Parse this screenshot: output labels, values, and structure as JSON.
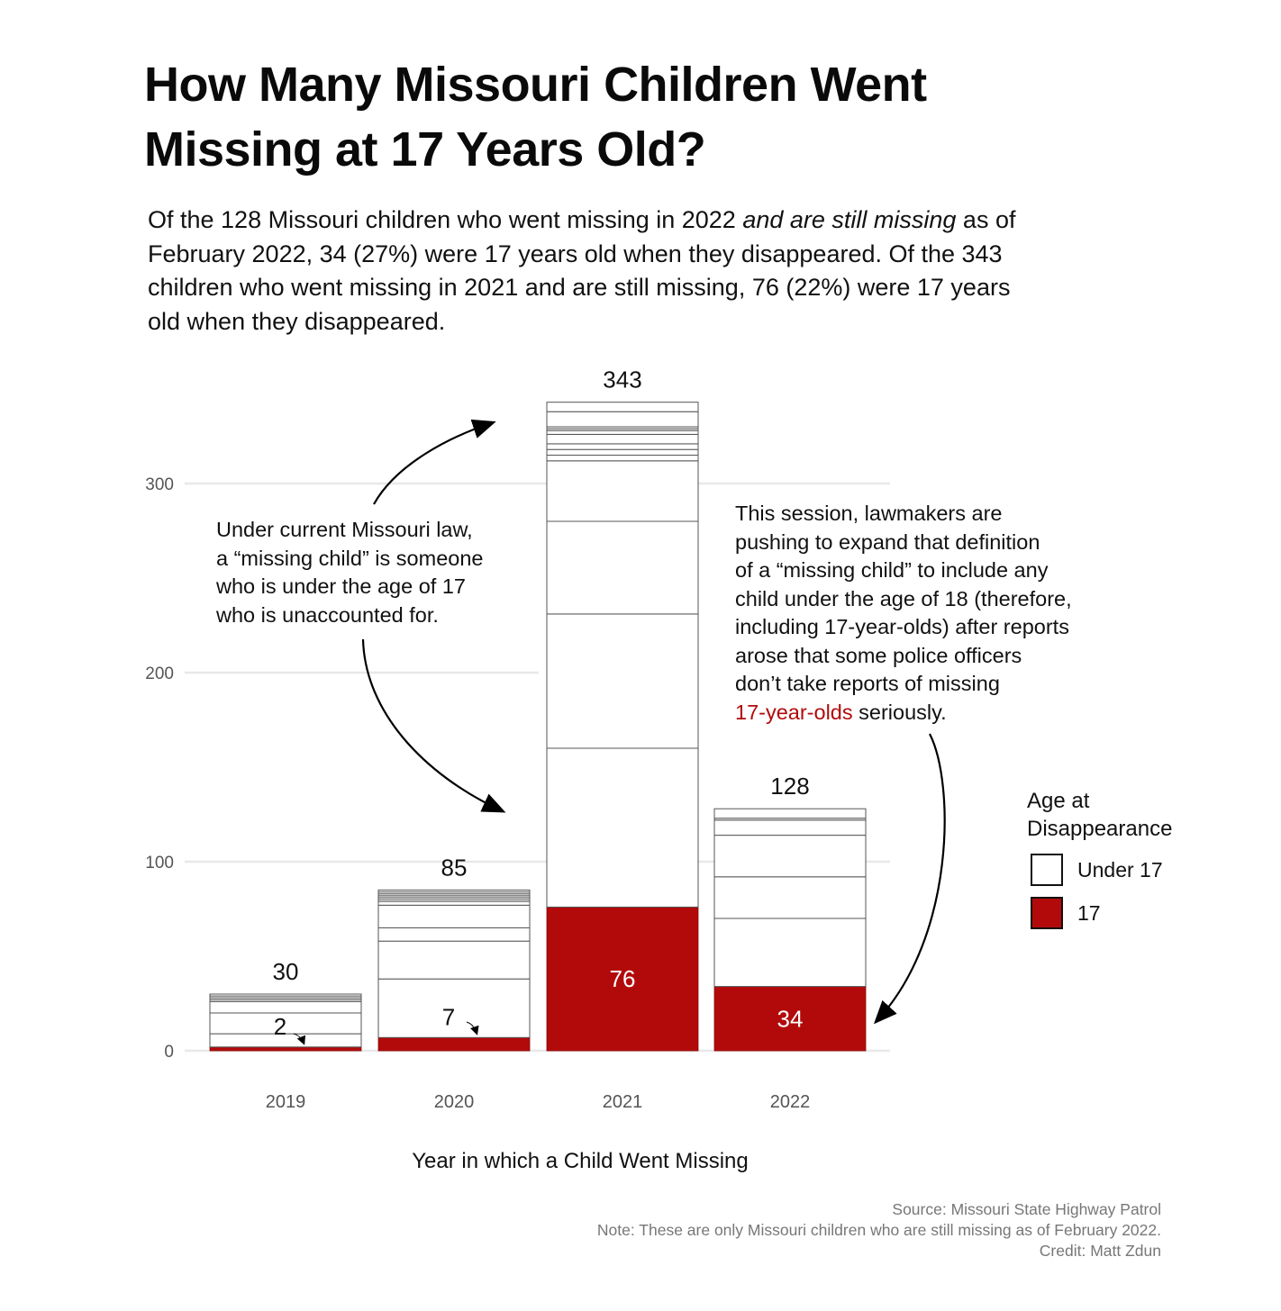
{
  "title": "How Many Missouri Children Went Missing at 17 Years Old?",
  "subtitle": {
    "parts": [
      {
        "text": "Of the 128 Missouri children who went missing in 2022 ",
        "italic": false
      },
      {
        "text": "and are still missing",
        "italic": true
      },
      {
        "text": " as of February 2022, 34 (27%) were 17 years old when they disappeared. Of the 343 children who went missing in 2021 and are still missing, 76 (22%) were 17 years old when they disappeared.",
        "italic": false
      }
    ]
  },
  "annotations": {
    "left": "Under current Missouri law,\na “missing child” is someone\nwho is under the age of 17\nwho is unaccounted for.",
    "right_main": "This session, lawmakers are\npushing to expand that definition\nof a “missing child” to include any\nchild under the age of 18 (therefore,\nincluding 17-year-olds) after reports\narose that some police officers\ndon’t take reports of missing\n",
    "right_highlight": "17-year-olds",
    "right_tail": " seriously."
  },
  "legend": {
    "title": "Age at\nDisappearance",
    "items": [
      {
        "label": "Under 17",
        "color": "#ffffff"
      },
      {
        "label": "17",
        "color": "#b20a0a"
      }
    ]
  },
  "footer": {
    "source": "Source: Missouri State Highway Patrol",
    "note": "Note: These are only Missouri children who are still missing as of February 2022.",
    "credit": "Credit: Matt Zdun"
  },
  "colors": {
    "seventeen": "#b20a0a",
    "under17": "#ffffff",
    "segment_line": "#555555",
    "grid": "#e8e8e8",
    "axis_text": "#555555"
  },
  "chart_data": {
    "type": "bar",
    "stacked": true,
    "title": "How Many Missouri Children Went Missing at 17 Years Old?",
    "xlabel": "Year in which a Child Went Missing",
    "ylabel": "",
    "categories": [
      "2019",
      "2020",
      "2021",
      "2022"
    ],
    "ylim": [
      0,
      343
    ],
    "yticks": [
      0,
      100,
      200,
      300
    ],
    "grid": true,
    "legend_position": "right",
    "totals": [
      30,
      85,
      343,
      128
    ],
    "seventeen": [
      2,
      7,
      76,
      34
    ],
    "under17": [
      28,
      78,
      267,
      94
    ],
    "under17_segments": [
      [
        7,
        11,
        6,
        1,
        1,
        1,
        1
      ],
      [
        31,
        20,
        7,
        12,
        2,
        1,
        1,
        1,
        1,
        1,
        1
      ],
      [
        84,
        71,
        49,
        32,
        3,
        3,
        3,
        5,
        2,
        1,
        1,
        8,
        5
      ],
      [
        36,
        22,
        22,
        8,
        1,
        5
      ]
    ],
    "series": [
      {
        "name": "17",
        "values": [
          2,
          7,
          76,
          34
        ]
      },
      {
        "name": "Under 17",
        "values": [
          28,
          78,
          267,
          94
        ]
      }
    ],
    "data_labels": {
      "totals": [
        "30",
        "85",
        "343",
        "128"
      ],
      "seventeen": [
        "2",
        "7",
        "76",
        "34"
      ]
    }
  }
}
